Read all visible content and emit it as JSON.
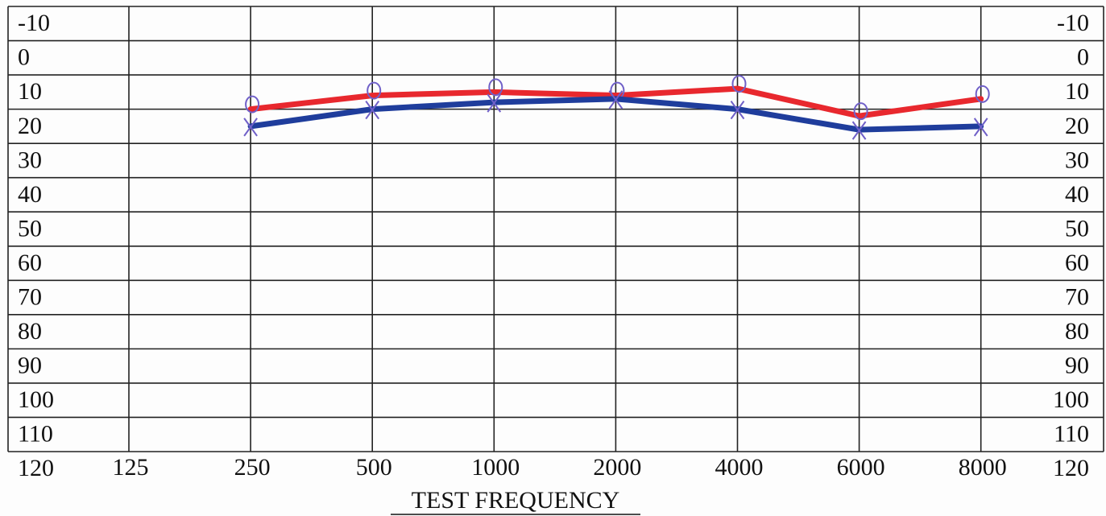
{
  "chart_data": {
    "type": "line",
    "x_label": "TEST FREQUENCY",
    "categories": [
      "125",
      "250",
      "500",
      "1000",
      "2000",
      "4000",
      "6000",
      "8000"
    ],
    "series": [
      {
        "color": "#e8282e",
        "marker": "circle",
        "marker_color": "#7060c8",
        "values": [
          null,
          15,
          11,
          10,
          11,
          9,
          17,
          12
        ]
      },
      {
        "color": "#1f3d9c",
        "marker": "x",
        "marker_color": "#7060c8",
        "values": [
          null,
          20,
          15,
          13,
          12,
          15,
          21,
          20
        ]
      }
    ],
    "ylim": [
      -15,
      115
    ],
    "yticks": [
      -10,
      0,
      10,
      20,
      30,
      40,
      50,
      60,
      70,
      80,
      90,
      100,
      110,
      120
    ],
    "y_inverted": true,
    "grid": true
  }
}
